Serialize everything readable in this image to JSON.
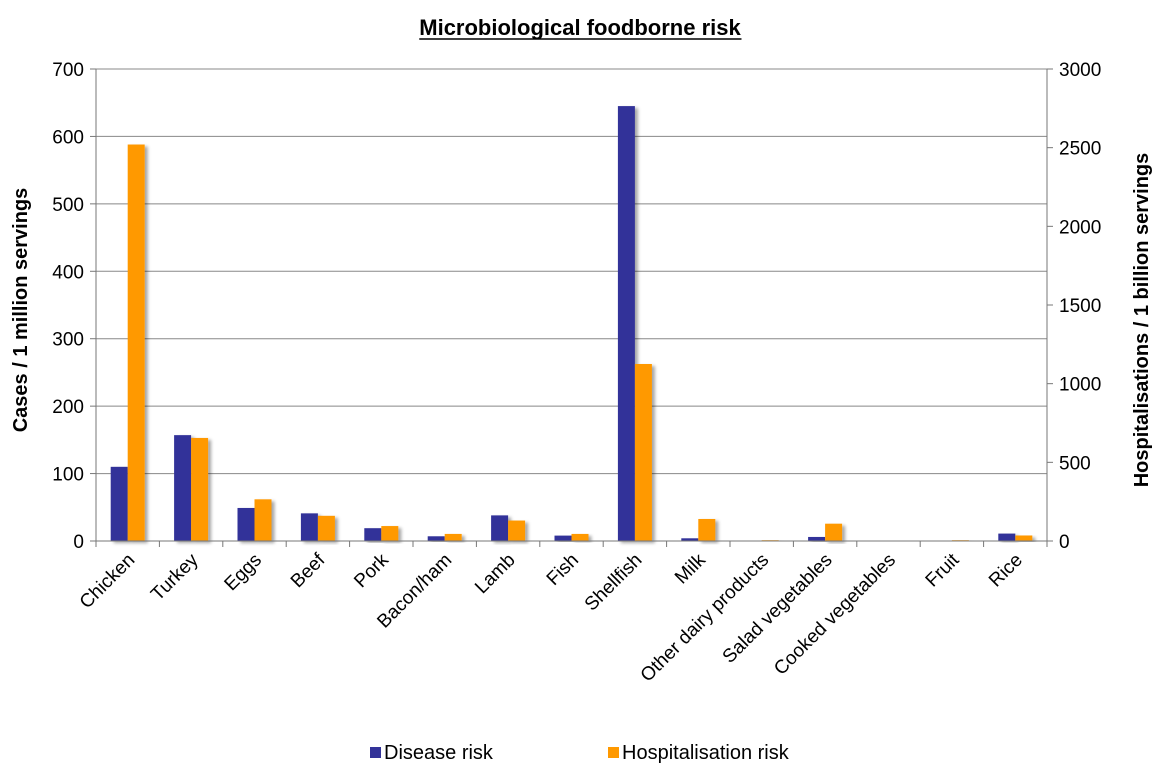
{
  "chart_data": {
    "type": "bar",
    "title": "Microbiological foodborne risk",
    "categories": [
      "Chicken",
      "Turkey",
      "Eggs",
      "Beef",
      "Pork",
      "Bacon/ham",
      "Lamb",
      "Fish",
      "Shellfish",
      "Milk",
      "Other dairy products",
      "Salad vegetables",
      "Cooked vegetables",
      "Fruit",
      "Rice"
    ],
    "series": [
      {
        "name": "Disease risk",
        "axis": "left",
        "color": "#333399",
        "values": [
          110,
          157,
          49,
          41,
          19,
          7,
          38,
          8,
          645,
          4,
          0,
          6,
          0,
          0,
          11
        ]
      },
      {
        "name": "Hospitalisation risk",
        "axis": "right",
        "color": "#FF9900",
        "values": [
          2520,
          655,
          265,
          160,
          95,
          45,
          130,
          45,
          1125,
          140,
          5,
          110,
          0,
          5,
          35
        ]
      }
    ],
    "ylabel": "Cases / 1 million servings",
    "ylim": [
      0,
      700
    ],
    "yticks": [
      0,
      100,
      200,
      300,
      400,
      500,
      600,
      700
    ],
    "y2label": "Hospitalisations / 1 billion servings",
    "y2lim": [
      0,
      3000
    ],
    "y2ticks": [
      0,
      500,
      1000,
      1500,
      2000,
      2500,
      3000
    ],
    "grid": true,
    "legend_position": "bottom"
  }
}
